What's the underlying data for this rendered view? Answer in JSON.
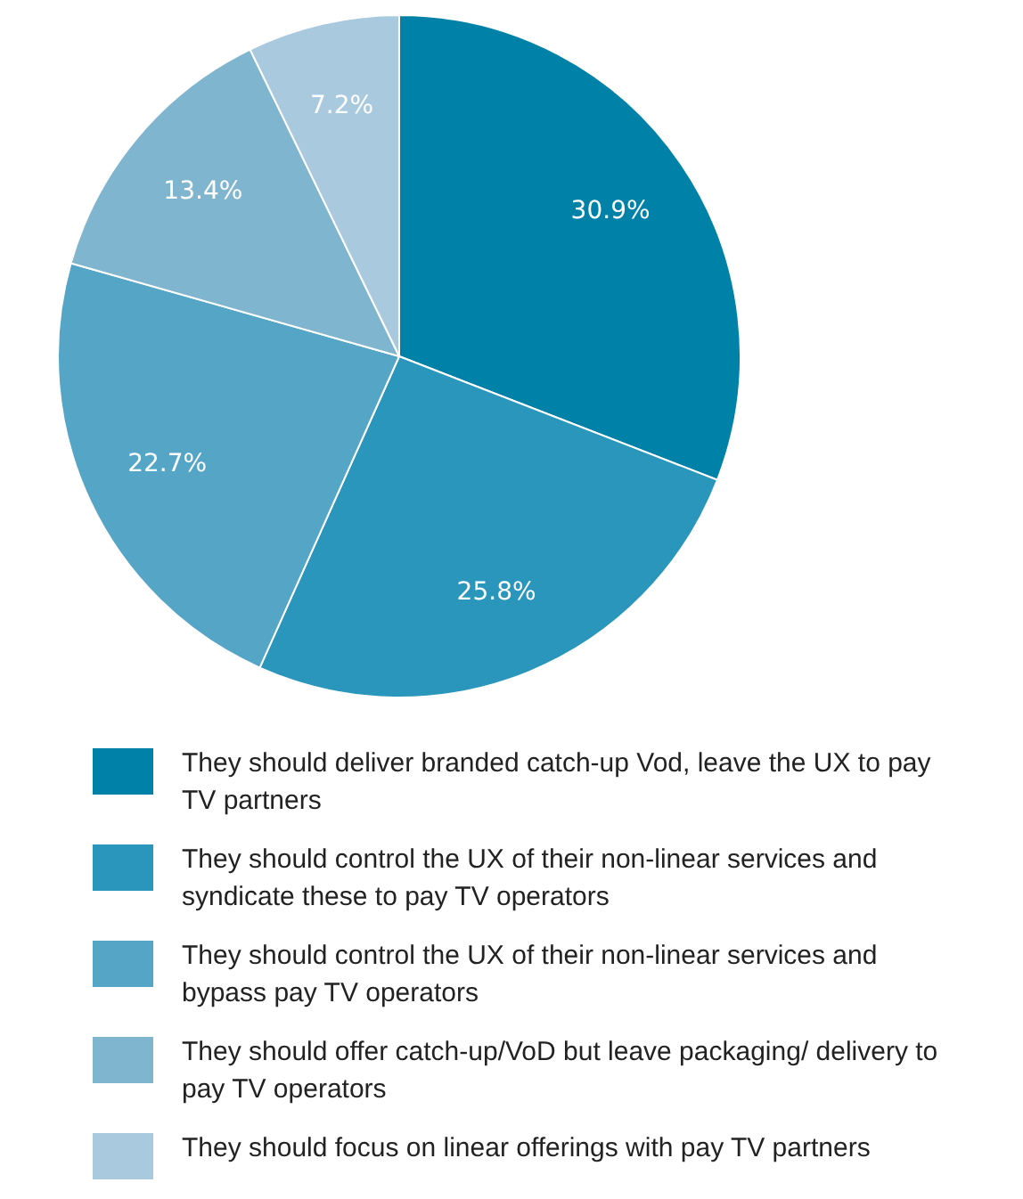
{
  "chart_data": {
    "type": "pie",
    "categories": [
      "They should deliver branded catch-up Vod, leave the UX to pay TV partners",
      "They should control the UX of their non-linear services and syndicate these to pay TV operators",
      "They should control the UX of their non-linear services and bypass pay TV operators",
      "They should offer catch-up/VoD but leave packaging/ delivery to pay TV operators",
      "They should focus on linear offerings with pay TV partners"
    ],
    "values": [
      30.9,
      25.8,
      22.7,
      13.4,
      7.2
    ],
    "colors": [
      "#0081a8",
      "#2a96bb",
      "#55a5c7",
      "#80b5cf",
      "#a8c9de"
    ],
    "value_labels": [
      "30.9%",
      "25.8%",
      "22.7%",
      "13.4%",
      "7.2%"
    ],
    "legend": "bottom"
  }
}
